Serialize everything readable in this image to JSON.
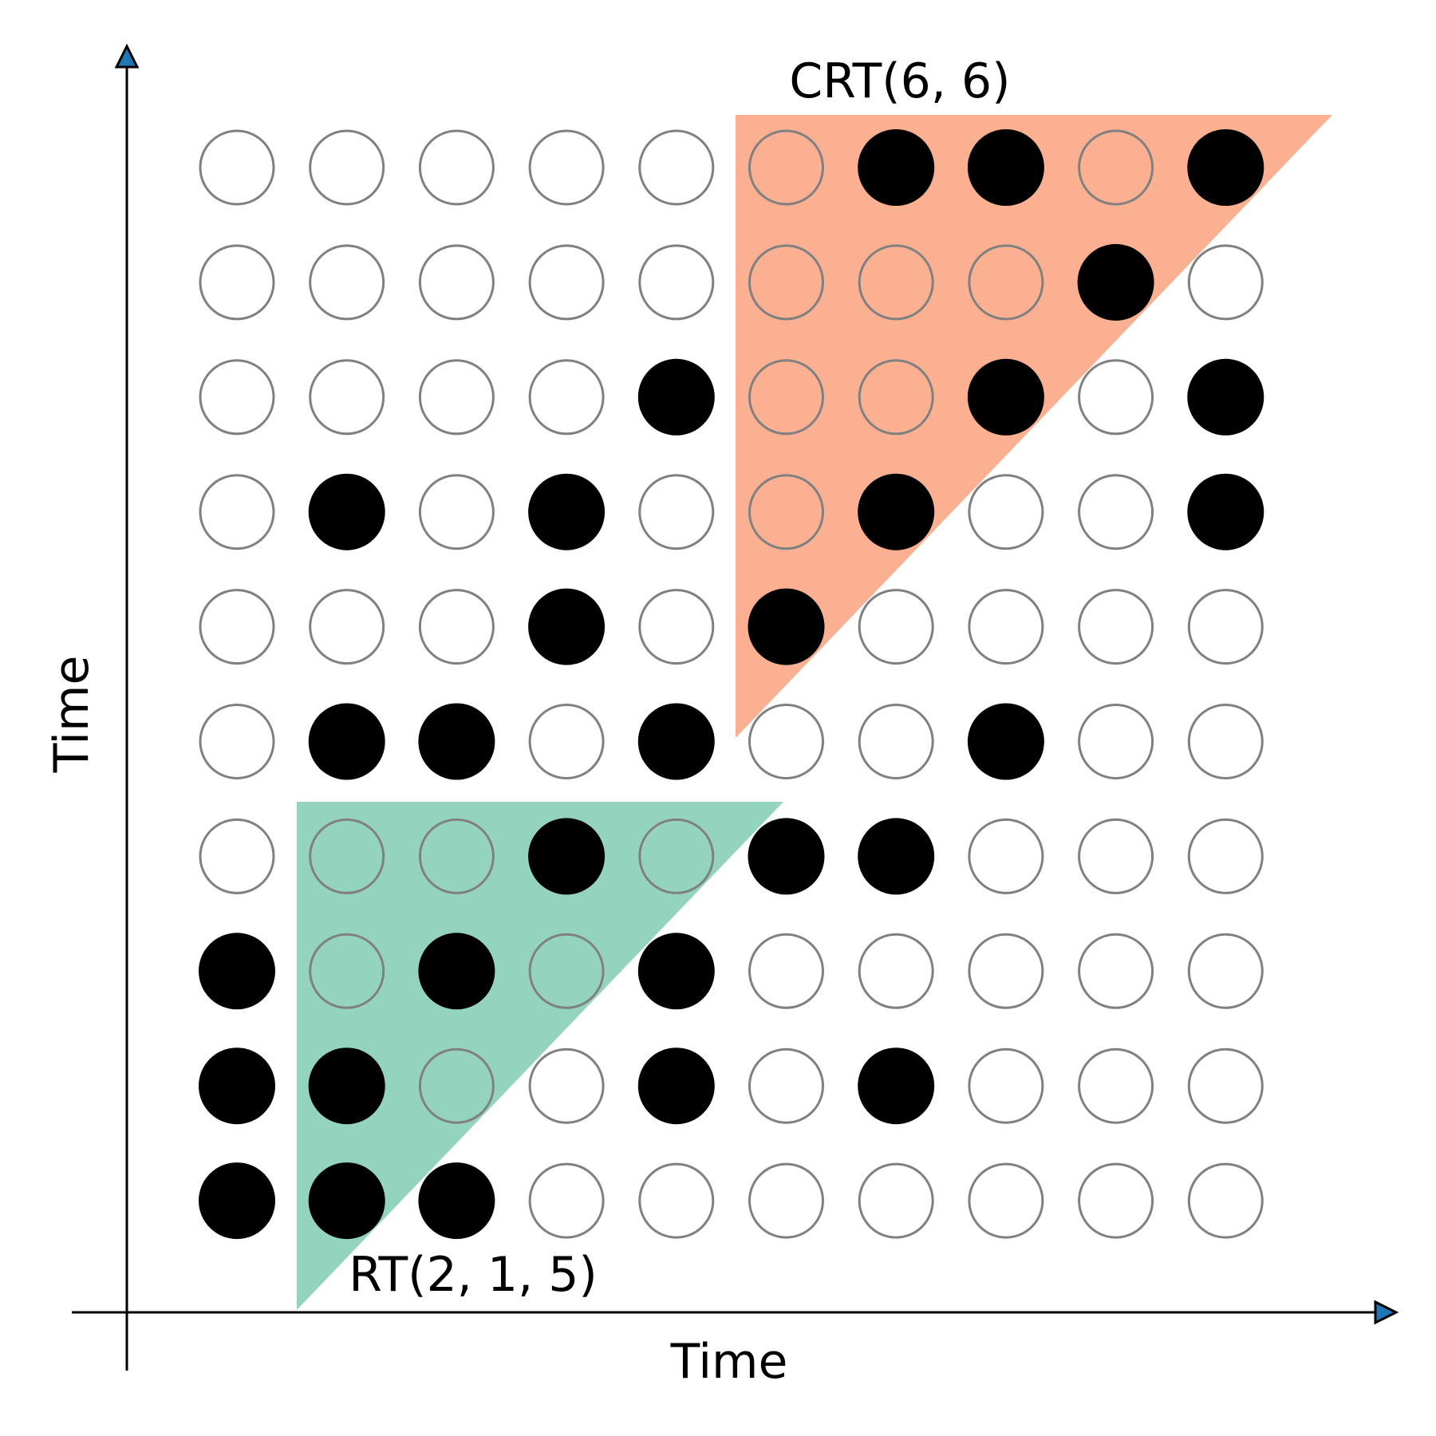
{
  "diagram": {
    "x_axis_label": "Time",
    "y_axis_label": "Time",
    "regions": [
      {
        "name": "crt-region",
        "label": "CRT(6, 6)",
        "color": "#FBB092"
      },
      {
        "name": "rt-region",
        "label": "RT(2, 1, 5)",
        "color": "#94D4BF"
      }
    ],
    "colors": {
      "filled_dot": "#000000",
      "empty_dot_stroke": "#808080",
      "axis": "#000000",
      "arrowhead": "#1F77B4"
    },
    "grid": {
      "columns": 10,
      "rows": 10,
      "filled_rows_top_to_bottom": [
        [
          0,
          0,
          0,
          0,
          0,
          0,
          1,
          1,
          0,
          1
        ],
        [
          0,
          0,
          0,
          0,
          0,
          0,
          0,
          0,
          1,
          0
        ],
        [
          0,
          0,
          0,
          0,
          1,
          0,
          0,
          1,
          0,
          1
        ],
        [
          0,
          1,
          0,
          1,
          0,
          0,
          1,
          0,
          0,
          1
        ],
        [
          0,
          0,
          0,
          1,
          0,
          1,
          0,
          0,
          0,
          0
        ],
        [
          0,
          1,
          1,
          0,
          1,
          0,
          0,
          1,
          0,
          0
        ],
        [
          0,
          0,
          0,
          1,
          0,
          1,
          1,
          0,
          0,
          0
        ],
        [
          1,
          0,
          1,
          0,
          1,
          0,
          0,
          0,
          0,
          0
        ],
        [
          1,
          1,
          0,
          0,
          1,
          0,
          1,
          0,
          0,
          0
        ],
        [
          1,
          1,
          1,
          0,
          0,
          0,
          0,
          0,
          0,
          0
        ]
      ]
    }
  }
}
